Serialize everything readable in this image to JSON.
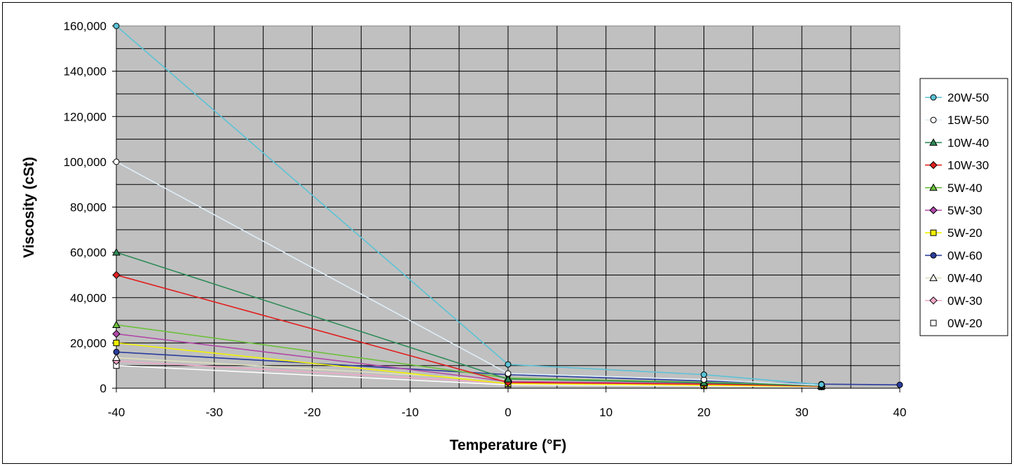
{
  "chart_data": {
    "type": "line",
    "xlabel": "Temperature (°F)",
    "ylabel": "Viscosity (cSt)",
    "xlim": [
      -40,
      40
    ],
    "ylim": [
      0,
      160000
    ],
    "x_ticks": [
      "-40",
      "-30",
      "-20",
      "-10",
      "0",
      "10",
      "20",
      "30",
      "40"
    ],
    "y_ticks": [
      "0",
      "20,000",
      "40,000",
      "60,000",
      "80,000",
      "100,000",
      "120,000",
      "140,000",
      "160,000"
    ],
    "grid": true,
    "plot_background": "#c0c0c0",
    "legend_position": "right",
    "series": [
      {
        "name": "20W-50",
        "color": "#5bc2d6",
        "marker": "circle",
        "marker_fill": "#5bc2d6",
        "x": [
          -40,
          0,
          20,
          32
        ],
        "y": [
          160000,
          10500,
          6000,
          1600
        ]
      },
      {
        "name": "15W-50",
        "color": "#dfeef8",
        "marker": "circle",
        "marker_fill": "#ffffff",
        "x": [
          -40,
          0,
          20,
          32
        ],
        "y": [
          100000,
          6500,
          3800,
          1300
        ]
      },
      {
        "name": "10W-40",
        "color": "#2e8b57",
        "marker": "triangle",
        "marker_fill": "#2e8b57",
        "x": [
          -40,
          0,
          20,
          32
        ],
        "y": [
          60000,
          4000,
          2400,
          1100
        ]
      },
      {
        "name": "10W-30",
        "color": "#e02020",
        "marker": "diamond",
        "marker_fill": "#e02020",
        "x": [
          -40,
          0,
          20,
          32
        ],
        "y": [
          50000,
          2500,
          1800,
          900
        ]
      },
      {
        "name": "5W-40",
        "color": "#6cbf3c",
        "marker": "triangle",
        "marker_fill": "#6cbf3c",
        "x": [
          -40,
          0,
          20,
          32
        ],
        "y": [
          28000,
          4500,
          2600,
          1200
        ]
      },
      {
        "name": "5W-30",
        "color": "#b048a8",
        "marker": "diamond",
        "marker_fill": "#b048a8",
        "x": [
          -40,
          0,
          20,
          32
        ],
        "y": [
          24000,
          3000,
          2000,
          1000
        ]
      },
      {
        "name": "5W-20",
        "color": "#f2f200",
        "marker": "square",
        "marker_fill": "#f2f200",
        "x": [
          -40,
          0,
          20,
          32
        ],
        "y": [
          20000,
          2000,
          1300,
          800
        ]
      },
      {
        "name": "0W-60",
        "color": "#2a3c9c",
        "marker": "circle",
        "marker_fill": "#2a3c9c",
        "x": [
          -40,
          0,
          20,
          32,
          40
        ],
        "y": [
          16000,
          6000,
          3200,
          1800,
          1500
        ]
      },
      {
        "name": "0W-40",
        "color": "#e0e0c0",
        "marker": "triangle",
        "marker_fill": "#ffffff",
        "x": [
          -40,
          0,
          20,
          32
        ],
        "y": [
          13500,
          3500,
          2200,
          1000
        ]
      },
      {
        "name": "0W-30",
        "color": "#f0a8c8",
        "marker": "diamond",
        "marker_fill": "#f0a8c8",
        "x": [
          -40,
          0,
          20,
          32
        ],
        "y": [
          12000,
          2200,
          1500,
          800
        ]
      },
      {
        "name": "0W-20",
        "color": "#ffffff",
        "marker": "square",
        "marker_fill": "#ffffff",
        "x": [
          -40,
          0,
          20,
          32
        ],
        "y": [
          10000,
          1500,
          1000,
          600
        ]
      }
    ]
  }
}
